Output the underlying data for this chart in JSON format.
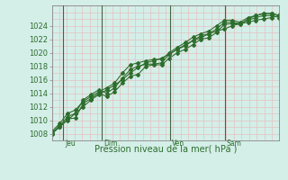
{
  "title": "",
  "xlabel": "Pression niveau de la mer( hPa )",
  "ylabel": "",
  "bg_color": "#d4eee8",
  "grid_color": "#e8b8b8",
  "line_color": "#2d6e2d",
  "ylim": [
    1007,
    1027
  ],
  "yticks": [
    1008,
    1010,
    1012,
    1014,
    1016,
    1018,
    1020,
    1022,
    1024
  ],
  "day_labels": [
    "Jeu",
    "Dim",
    "Ven",
    "Sam"
  ],
  "day_positions": [
    0.05,
    0.22,
    0.52,
    0.76
  ],
  "series": [
    [
      1008.0,
      1009.0,
      1010.2,
      1010.3,
      1012.5,
      1013.2,
      1014.0,
      1013.5,
      1014.2,
      1015.5,
      1016.5,
      1016.8,
      1018.0,
      1018.2,
      1018.2,
      1019.2,
      1020.0,
      1020.5,
      1021.2,
      1022.0,
      1022.2,
      1023.0,
      1024.2,
      1024.3,
      1024.2,
      1025.0,
      1025.5,
      1025.8,
      1025.8,
      1025.5
    ],
    [
      1008.1,
      1009.2,
      1010.5,
      1011.0,
      1013.0,
      1013.8,
      1014.5,
      1014.0,
      1014.8,
      1016.2,
      1017.5,
      1018.0,
      1018.3,
      1018.3,
      1018.5,
      1019.8,
      1020.5,
      1021.0,
      1021.8,
      1022.5,
      1022.8,
      1023.5,
      1024.5,
      1024.5,
      1024.3,
      1024.8,
      1025.2,
      1025.5,
      1025.5,
      1025.2
    ],
    [
      1008.3,
      1009.5,
      1011.0,
      1011.5,
      1012.8,
      1013.5,
      1014.2,
      1014.8,
      1015.5,
      1017.0,
      1018.2,
      1018.5,
      1018.8,
      1019.0,
      1019.0,
      1020.0,
      1020.8,
      1021.5,
      1022.3,
      1022.8,
      1023.2,
      1024.0,
      1024.8,
      1024.8,
      1024.5,
      1025.2,
      1025.5,
      1025.8,
      1025.8,
      1025.5
    ],
    [
      1008.0,
      1009.0,
      1010.0,
      1011.0,
      1012.0,
      1013.0,
      1013.8,
      1014.5,
      1015.2,
      1016.0,
      1017.0,
      1017.8,
      1018.5,
      1018.8,
      1019.2,
      1019.8,
      1020.5,
      1021.2,
      1021.8,
      1022.2,
      1022.8,
      1023.2,
      1023.5,
      1024.0,
      1024.3,
      1024.5,
      1024.8,
      1025.0,
      1025.2,
      1025.5
    ]
  ]
}
